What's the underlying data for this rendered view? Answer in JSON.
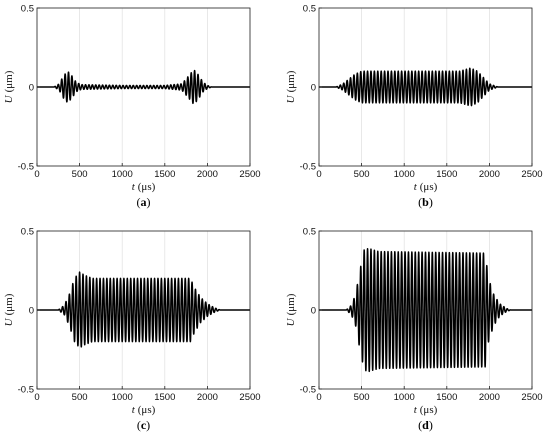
{
  "chart_data": [
    {
      "type": "line",
      "caption": "(a)",
      "xlabel_var": "t",
      "xlabel_unit": "(μs)",
      "ylabel_var": "U",
      "ylabel_unit": "(μm)",
      "xlim": [
        0,
        2500
      ],
      "ylim": [
        -0.5,
        0.5
      ],
      "xticks": [
        0,
        500,
        1000,
        1500,
        2000,
        2500
      ],
      "yticks": [
        -0.5,
        0,
        0.5
      ],
      "grid": true,
      "waveform": {
        "period_us": 40,
        "start_us": 200,
        "end_us": 2050,
        "envelope": [
          [
            200,
            0
          ],
          [
            260,
            0.02
          ],
          [
            310,
            0.07
          ],
          [
            360,
            0.1
          ],
          [
            410,
            0.07
          ],
          [
            460,
            0.03
          ],
          [
            520,
            0.015
          ],
          [
            1000,
            0.01
          ],
          [
            1500,
            0.01
          ],
          [
            1700,
            0.02
          ],
          [
            1780,
            0.07
          ],
          [
            1840,
            0.11
          ],
          [
            1890,
            0.08
          ],
          [
            1950,
            0.03
          ],
          [
            2000,
            0.01
          ],
          [
            2050,
            0
          ]
        ]
      }
    },
    {
      "type": "line",
      "caption": "(b)",
      "xlabel_var": "t",
      "xlabel_unit": "(μs)",
      "ylabel_var": "U",
      "ylabel_unit": "(μm)",
      "xlim": [
        0,
        2500
      ],
      "ylim": [
        -0.5,
        0.5
      ],
      "xticks": [
        0,
        500,
        1000,
        1500,
        2000,
        2500
      ],
      "yticks": [
        -0.5,
        0,
        0.5
      ],
      "grid": true,
      "waveform": {
        "period_us": 40,
        "start_us": 200,
        "end_us": 2100,
        "envelope": [
          [
            200,
            0
          ],
          [
            280,
            0.02
          ],
          [
            350,
            0.05
          ],
          [
            420,
            0.08
          ],
          [
            500,
            0.1
          ],
          [
            1650,
            0.1
          ],
          [
            1780,
            0.12
          ],
          [
            1860,
            0.1
          ],
          [
            1930,
            0.06
          ],
          [
            2000,
            0.02
          ],
          [
            2100,
            0
          ]
        ]
      }
    },
    {
      "type": "line",
      "caption": "(c)",
      "xlabel_var": "t",
      "xlabel_unit": "(μs)",
      "ylabel_var": "U",
      "ylabel_unit": "(μm)",
      "xlim": [
        0,
        2500
      ],
      "ylim": [
        -0.5,
        0.5
      ],
      "xticks": [
        0,
        500,
        1000,
        1500,
        2000,
        2500
      ],
      "yticks": [
        -0.5,
        0,
        0.5
      ],
      "grid": true,
      "waveform": {
        "period_us": 40,
        "start_us": 250,
        "end_us": 2150,
        "envelope": [
          [
            250,
            0
          ],
          [
            320,
            0.03
          ],
          [
            380,
            0.1
          ],
          [
            440,
            0.2
          ],
          [
            500,
            0.24
          ],
          [
            560,
            0.22
          ],
          [
            650,
            0.2
          ],
          [
            1800,
            0.2
          ],
          [
            1850,
            0.14
          ],
          [
            1920,
            0.08
          ],
          [
            2000,
            0.04
          ],
          [
            2080,
            0.015
          ],
          [
            2150,
            0
          ]
        ]
      }
    },
    {
      "type": "line",
      "caption": "(d)",
      "xlabel_var": "t",
      "xlabel_unit": "(μs)",
      "ylabel_var": "U",
      "ylabel_unit": "(μm)",
      "xlim": [
        0,
        2500
      ],
      "ylim": [
        -0.5,
        0.5
      ],
      "xticks": [
        0,
        500,
        1000,
        1500,
        2000,
        2500
      ],
      "yticks": [
        -0.5,
        0,
        0.5
      ],
      "grid": true,
      "waveform": {
        "period_us": 40,
        "start_us": 320,
        "end_us": 2250,
        "envelope": [
          [
            320,
            0
          ],
          [
            380,
            0.03
          ],
          [
            430,
            0.1
          ],
          [
            480,
            0.25
          ],
          [
            530,
            0.38
          ],
          [
            580,
            0.39
          ],
          [
            700,
            0.37
          ],
          [
            1950,
            0.36
          ],
          [
            1990,
            0.2
          ],
          [
            2050,
            0.1
          ],
          [
            2120,
            0.04
          ],
          [
            2200,
            0.01
          ],
          [
            2250,
            0
          ]
        ]
      }
    }
  ]
}
